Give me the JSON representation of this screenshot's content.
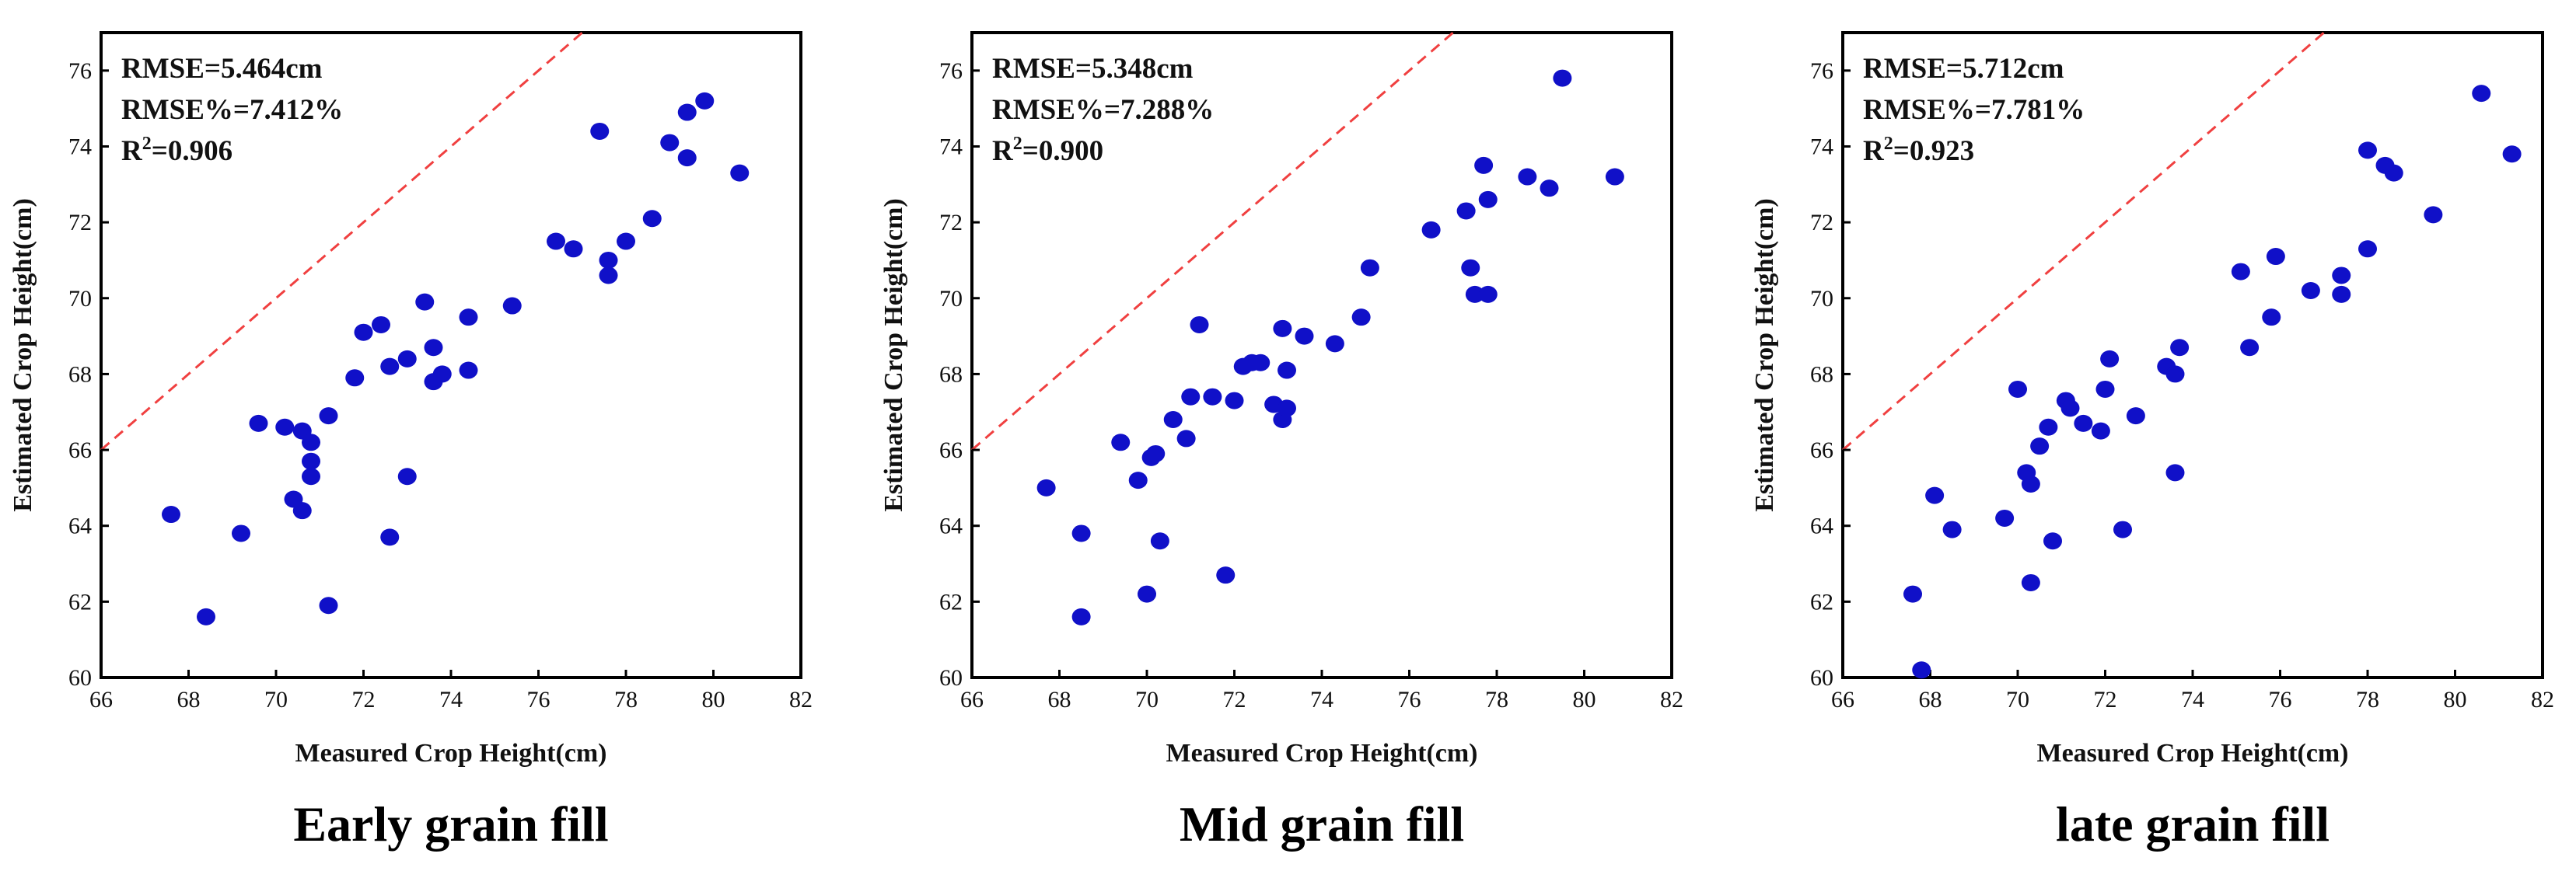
{
  "chart_data": [
    {
      "type": "scatter",
      "caption": "Early grain fill",
      "xlabel": "Measured Crop Height(cm)",
      "ylabel": "Estimated Crop Height(cm)",
      "xlim": [
        66,
        82
      ],
      "ylim": [
        60,
        77
      ],
      "xticks": [
        66,
        68,
        70,
        72,
        74,
        76,
        78,
        80,
        82
      ],
      "yticks": [
        60,
        62,
        64,
        66,
        68,
        70,
        72,
        74,
        76
      ],
      "stats": {
        "rmse": "RMSE=5.464cm",
        "rmse_pct": "RMSE%=7.412%",
        "r2_prefix": "R",
        "r2_sup": "2",
        "r2_value": "=0.906"
      },
      "reference_line": "1:1",
      "point_color": "#1010c8",
      "line_color": "#f04040",
      "points": [
        [
          67.6,
          64.3
        ],
        [
          68.4,
          61.6
        ],
        [
          69.2,
          63.8
        ],
        [
          69.6,
          66.7
        ],
        [
          70.2,
          66.6
        ],
        [
          70.4,
          64.7
        ],
        [
          70.6,
          64.4
        ],
        [
          70.6,
          66.5
        ],
        [
          70.8,
          66.2
        ],
        [
          70.8,
          65.7
        ],
        [
          70.8,
          65.3
        ],
        [
          71.2,
          66.9
        ],
        [
          71.2,
          61.9
        ],
        [
          71.8,
          67.9
        ],
        [
          72.0,
          69.1
        ],
        [
          72.4,
          69.3
        ],
        [
          72.6,
          68.2
        ],
        [
          72.6,
          63.7
        ],
        [
          73.0,
          65.3
        ],
        [
          73.0,
          68.4
        ],
        [
          73.4,
          69.9
        ],
        [
          73.6,
          68.7
        ],
        [
          73.6,
          67.8
        ],
        [
          73.8,
          68.0
        ],
        [
          74.4,
          68.1
        ],
        [
          74.4,
          69.5
        ],
        [
          75.4,
          69.8
        ],
        [
          76.4,
          71.5
        ],
        [
          76.8,
          71.3
        ],
        [
          77.4,
          74.4
        ],
        [
          77.6,
          71.0
        ],
        [
          77.6,
          70.6
        ],
        [
          78.0,
          71.5
        ],
        [
          78.6,
          72.1
        ],
        [
          79.0,
          74.1
        ],
        [
          79.4,
          74.9
        ],
        [
          79.4,
          73.7
        ],
        [
          79.8,
          75.2
        ],
        [
          80.6,
          73.3
        ]
      ]
    },
    {
      "type": "scatter",
      "caption": "Mid grain fill",
      "xlabel": "Measured Crop Height(cm)",
      "ylabel": "Estimated Crop Height(cm)",
      "xlim": [
        66,
        82
      ],
      "ylim": [
        60,
        77
      ],
      "xticks": [
        66,
        68,
        70,
        72,
        74,
        76,
        78,
        80,
        82
      ],
      "yticks": [
        60,
        62,
        64,
        66,
        68,
        70,
        72,
        74,
        76
      ],
      "stats": {
        "rmse": "RMSE=5.348cm",
        "rmse_pct": "RMSE%=7.288%",
        "r2_prefix": "R",
        "r2_sup": "2",
        "r2_value": "=0.900"
      },
      "reference_line": "1:1",
      "point_color": "#1010c8",
      "line_color": "#f04040",
      "points": [
        [
          67.7,
          65.0
        ],
        [
          68.5,
          63.8
        ],
        [
          68.5,
          61.6
        ],
        [
          69.4,
          66.2
        ],
        [
          69.8,
          65.2
        ],
        [
          70.0,
          62.2
        ],
        [
          70.1,
          65.8
        ],
        [
          70.2,
          65.9
        ],
        [
          70.3,
          63.6
        ],
        [
          70.6,
          66.8
        ],
        [
          70.9,
          66.3
        ],
        [
          71.0,
          67.4
        ],
        [
          71.2,
          69.3
        ],
        [
          71.5,
          67.4
        ],
        [
          71.8,
          62.7
        ],
        [
          72.0,
          67.3
        ],
        [
          72.2,
          68.2
        ],
        [
          72.4,
          68.3
        ],
        [
          72.6,
          68.3
        ],
        [
          72.9,
          67.2
        ],
        [
          73.1,
          69.2
        ],
        [
          73.1,
          66.8
        ],
        [
          73.2,
          68.1
        ],
        [
          73.2,
          67.1
        ],
        [
          73.6,
          69.0
        ],
        [
          74.3,
          68.8
        ],
        [
          74.9,
          69.5
        ],
        [
          75.1,
          70.8
        ],
        [
          76.5,
          71.8
        ],
        [
          77.3,
          72.3
        ],
        [
          77.4,
          70.8
        ],
        [
          77.5,
          70.1
        ],
        [
          77.7,
          73.5
        ],
        [
          77.8,
          70.1
        ],
        [
          77.8,
          72.6
        ],
        [
          78.7,
          73.2
        ],
        [
          79.2,
          72.9
        ],
        [
          79.5,
          75.8
        ],
        [
          80.7,
          73.2
        ]
      ]
    },
    {
      "type": "scatter",
      "caption": "late grain fill",
      "xlabel": "Measured Crop Height(cm)",
      "ylabel": "Estimated Crop Height(cm)",
      "xlim": [
        66,
        82
      ],
      "ylim": [
        60,
        77
      ],
      "xticks": [
        66,
        68,
        70,
        72,
        74,
        76,
        78,
        80,
        82
      ],
      "yticks": [
        60,
        62,
        64,
        66,
        68,
        70,
        72,
        74,
        76
      ],
      "stats": {
        "rmse": "RMSE=5.712cm",
        "rmse_pct": "RMSE%=7.781%",
        "r2_prefix": "R",
        "r2_sup": "2",
        "r2_value": "=0.923"
      },
      "reference_line": "1:1",
      "point_color": "#1010c8",
      "line_color": "#f04040",
      "points": [
        [
          67.6,
          62.2
        ],
        [
          67.8,
          60.2
        ],
        [
          68.1,
          64.8
        ],
        [
          68.5,
          63.9
        ],
        [
          69.7,
          64.2
        ],
        [
          70.0,
          67.6
        ],
        [
          70.2,
          65.4
        ],
        [
          70.3,
          65.1
        ],
        [
          70.3,
          62.5
        ],
        [
          70.5,
          66.1
        ],
        [
          70.7,
          66.6
        ],
        [
          70.8,
          63.6
        ],
        [
          71.1,
          67.3
        ],
        [
          71.2,
          67.1
        ],
        [
          71.5,
          66.7
        ],
        [
          71.9,
          66.5
        ],
        [
          72.0,
          67.6
        ],
        [
          72.1,
          68.4
        ],
        [
          72.4,
          63.9
        ],
        [
          72.7,
          66.9
        ],
        [
          73.4,
          68.2
        ],
        [
          73.6,
          68.0
        ],
        [
          73.6,
          65.4
        ],
        [
          73.7,
          68.7
        ],
        [
          75.1,
          70.7
        ],
        [
          75.3,
          68.7
        ],
        [
          75.8,
          69.5
        ],
        [
          75.9,
          71.1
        ],
        [
          76.7,
          70.2
        ],
        [
          77.4,
          70.1
        ],
        [
          77.4,
          70.6
        ],
        [
          78.0,
          71.3
        ],
        [
          78.0,
          73.9
        ],
        [
          78.4,
          73.5
        ],
        [
          78.6,
          73.3
        ],
        [
          79.5,
          72.2
        ],
        [
          80.6,
          75.4
        ],
        [
          81.3,
          73.8
        ]
      ]
    }
  ]
}
